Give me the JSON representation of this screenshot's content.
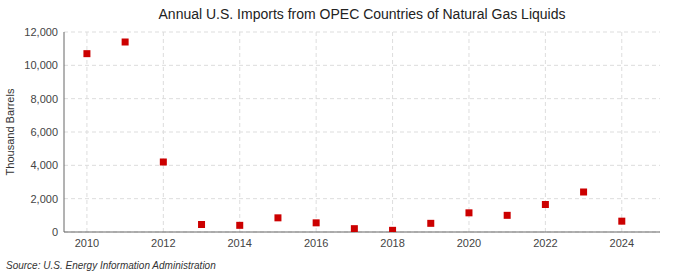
{
  "chart_data": {
    "type": "scatter",
    "title": "Annual U.S. Imports from OPEC Countries of Natural Gas Liquids",
    "y_label": "Thousand Barrels",
    "source": "Source: U.S. Energy Information Administration",
    "x": [
      2010,
      2011,
      2012,
      2013,
      2014,
      2015,
      2016,
      2017,
      2018,
      2019,
      2020,
      2021,
      2022,
      2023,
      2024
    ],
    "values": [
      10700,
      11400,
      4200,
      450,
      400,
      850,
      550,
      200,
      100,
      520,
      1150,
      1000,
      1650,
      2400,
      650
    ],
    "color": "#cc0000",
    "marker": "square",
    "xlim": [
      2009.4,
      2025.0
    ],
    "xticks": [
      2010,
      2012,
      2014,
      2016,
      2018,
      2020,
      2022,
      2024
    ],
    "ylim": [
      0,
      12000
    ],
    "yticks": [
      0,
      {
        "value": 2000,
        "label": "2,000"
      },
      {
        "value": 4000,
        "label": "4,000"
      },
      {
        "value": 6000,
        "label": "6,000"
      },
      {
        "value": 8000,
        "label": "8,000"
      },
      {
        "value": 10000,
        "label": "10,000"
      },
      {
        "value": 12000,
        "label": "12,000"
      }
    ],
    "grid": true
  }
}
